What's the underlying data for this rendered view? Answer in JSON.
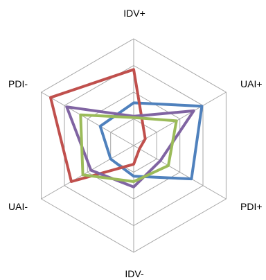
{
  "chart_data": {
    "type": "radar",
    "axes": [
      "IDV+",
      "UAI+",
      "PDI+",
      "IDV-",
      "UAI-",
      "PDI-"
    ],
    "rings": 4,
    "range": [
      0,
      4
    ],
    "grid": true,
    "legend": "none",
    "series": [
      {
        "color": "#4f81bd",
        "values": [
          1.6,
          2.95,
          2.5,
          1.15,
          1.0,
          1.45
        ]
      },
      {
        "color": "#c0504d",
        "values": [
          2.85,
          0.5,
          0.25,
          0.7,
          2.7,
          3.6
        ]
      },
      {
        "color": "#8064a2",
        "values": [
          1.1,
          2.6,
          1.15,
          1.55,
          1.85,
          2.9
        ]
      },
      {
        "color": "#9bbb59",
        "values": [
          1.05,
          1.85,
          1.5,
          1.35,
          2.2,
          2.3
        ]
      }
    ]
  }
}
